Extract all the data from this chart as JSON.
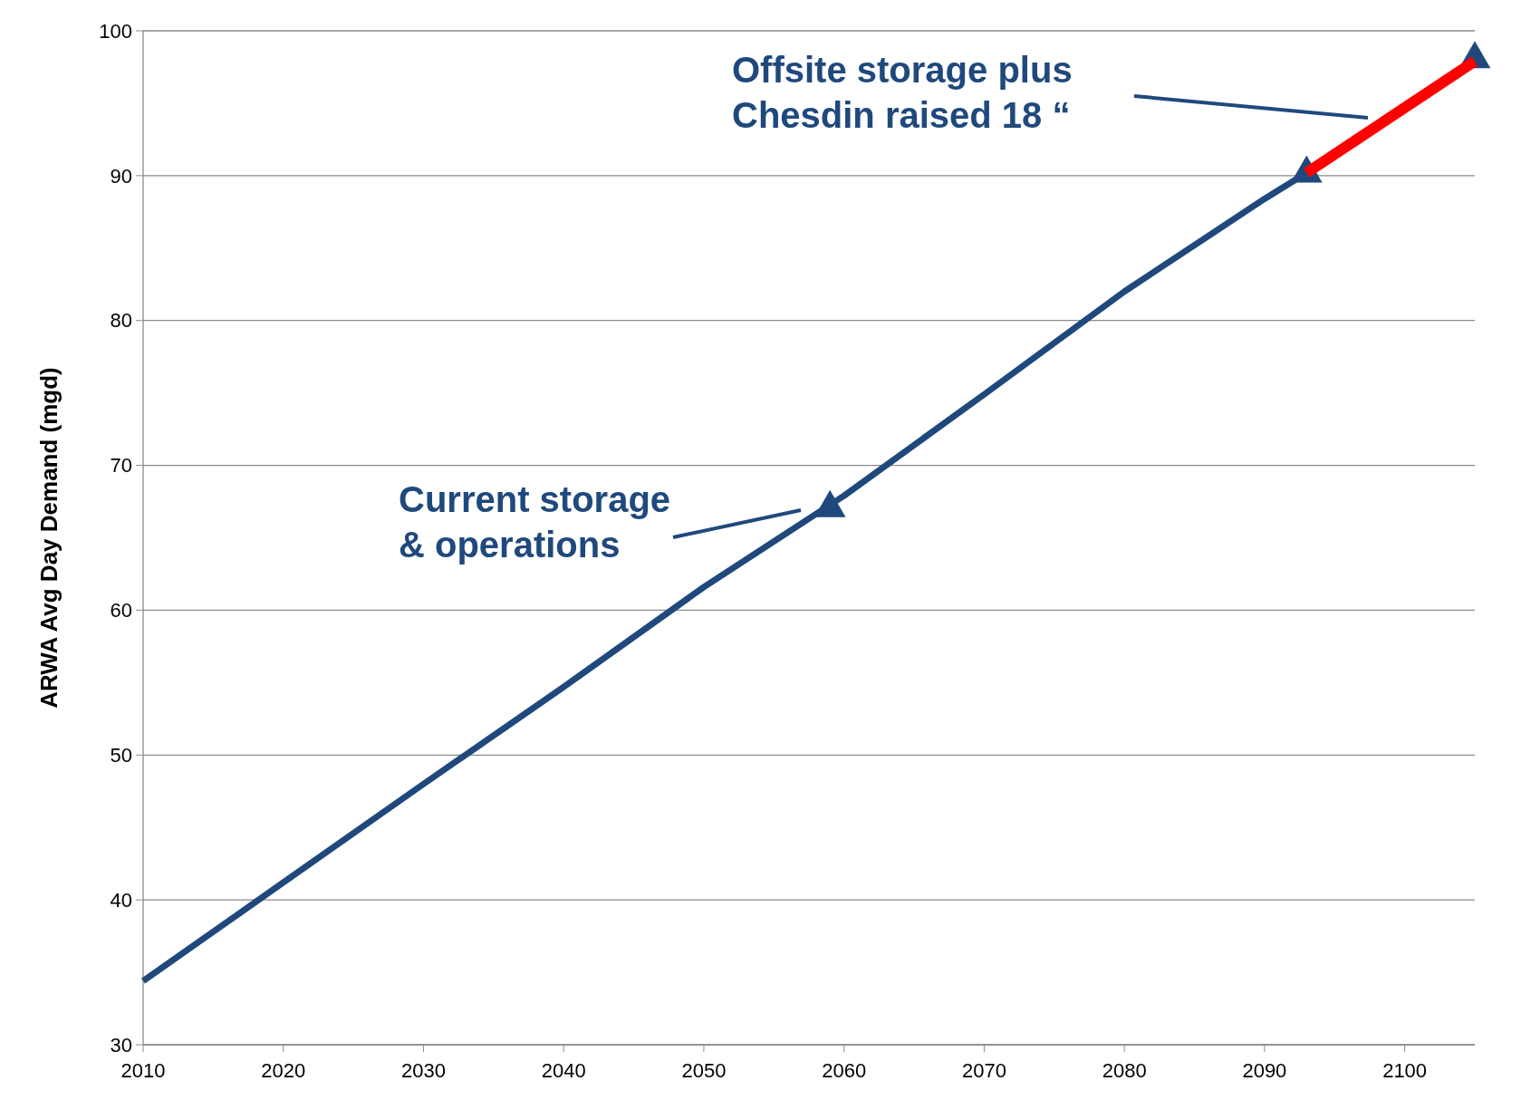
{
  "chart_data": {
    "type": "line",
    "ylabel": "ARWA Avg Day Demand (mgd)",
    "xlim": [
      2010,
      2105
    ],
    "xticks": [
      2010,
      2020,
      2030,
      2040,
      2050,
      2060,
      2070,
      2080,
      2090,
      2100
    ],
    "ylim": [
      30,
      100
    ],
    "yticks": [
      30,
      40,
      50,
      60,
      70,
      80,
      90,
      100
    ],
    "grid": "y",
    "series": [
      {
        "color": "#1f497d",
        "x": [
          2010,
          2020,
          2030,
          2040,
          2050,
          2060,
          2070,
          2080,
          2090,
          2093
        ],
        "values": [
          34.4,
          41.2,
          48.0,
          54.7,
          61.6,
          67.9,
          74.9,
          82.0,
          88.4,
          90.2
        ]
      },
      {
        "color": "#ff0000",
        "x": [
          2093,
          2105
        ],
        "values": [
          90.2,
          97.9
        ]
      },
      {
        "type": "scatter",
        "color": "#1f497d",
        "marker": "triangle",
        "x": [
          2059,
          2093,
          2105
        ],
        "values": [
          67.3,
          90.4,
          98.3
        ]
      }
    ],
    "annotations": [
      "Current storage\n& operations",
      "Offsite storage plus\nChesdin raised 18 “"
    ]
  }
}
